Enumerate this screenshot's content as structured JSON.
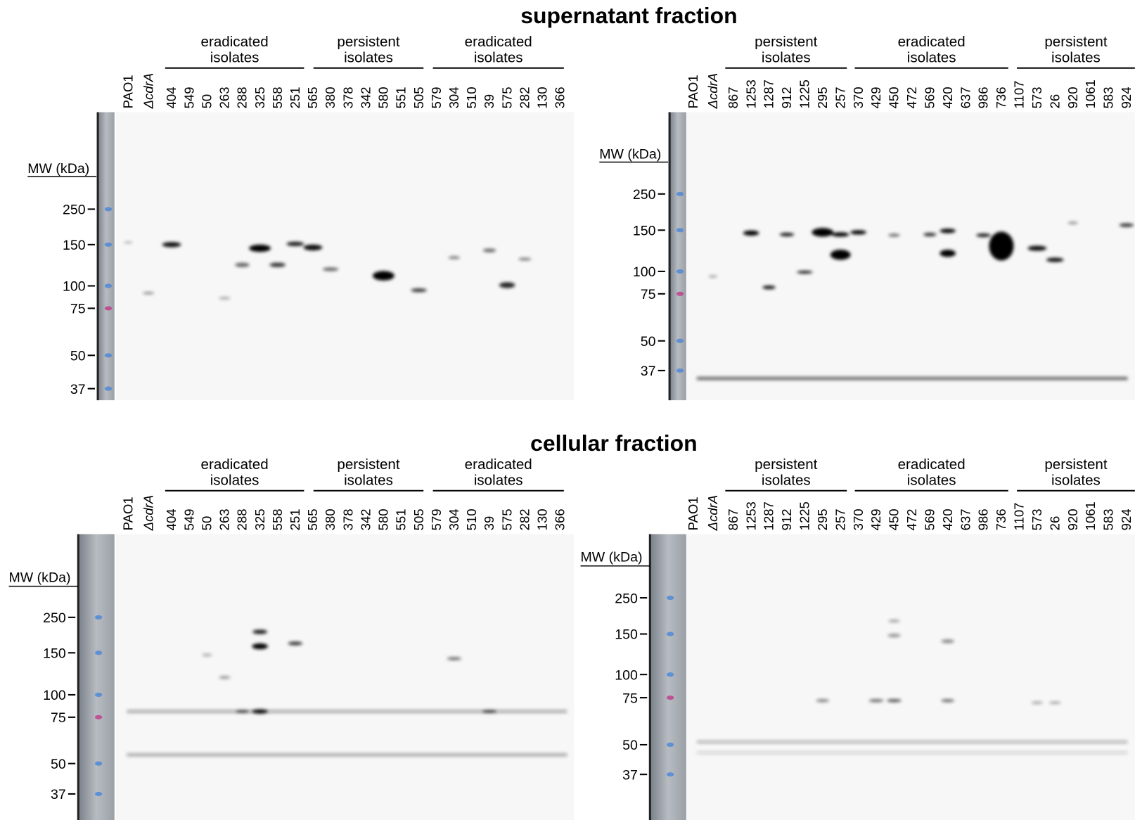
{
  "sections": [
    {
      "title": "supernatant fraction",
      "panels": [
        {
          "mw_label": "MW (kDa)",
          "markers": [
            250,
            150,
            100,
            75,
            50,
            37
          ],
          "controls": [
            "PAO1",
            "ΔcdrA"
          ],
          "groups": [
            {
              "label": [
                "eradicated",
                "isolates"
              ],
              "lanes": [
                "404",
                "549",
                "50",
                "263",
                "288",
                "325",
                "558",
                "251"
              ]
            },
            {
              "label": [
                "persistent",
                "isolates"
              ],
              "lanes": [
                "565",
                "380",
                "378",
                "342",
                "580",
                "551",
                "505"
              ]
            },
            {
              "label": [
                "eradicated",
                "isolates"
              ],
              "lanes": [
                "579",
                "304",
                "510",
                "39",
                "575",
                "282",
                "130",
                "366"
              ]
            }
          ]
        },
        {
          "mw_label": "MW (kDa)",
          "markers": [
            250,
            150,
            100,
            75,
            50,
            37
          ],
          "controls": [
            "PAO1",
            "ΔcdrA"
          ],
          "groups": [
            {
              "label": [
                "persistent",
                "isolates"
              ],
              "lanes": [
                "867",
                "1253",
                "1287",
                "912",
                "1225",
                "295",
                "257"
              ]
            },
            {
              "label": [
                "eradicated",
                "isolates"
              ],
              "lanes": [
                "370",
                "429",
                "450",
                "472",
                "569",
                "420",
                "637",
                "986",
                "736"
              ]
            },
            {
              "label": [
                "persistent",
                "isolates"
              ],
              "lanes": [
                "1107",
                "573",
                "26",
                "920",
                "1061",
                "583",
                "924"
              ]
            }
          ]
        }
      ]
    },
    {
      "title": "cellular fraction",
      "panels": [
        {
          "mw_label": "MW (kDa)",
          "markers": [
            250,
            150,
            100,
            75,
            50,
            37
          ],
          "controls": [
            "PAO1",
            "ΔcdrA"
          ],
          "groups": [
            {
              "label": [
                "eradicated",
                "isolates"
              ],
              "lanes": [
                "404",
                "549",
                "50",
                "263",
                "288",
                "325",
                "558",
                "251"
              ]
            },
            {
              "label": [
                "persistent",
                "isolates"
              ],
              "lanes": [
                "565",
                "380",
                "378",
                "342",
                "580",
                "551",
                "505"
              ]
            },
            {
              "label": [
                "eradicated",
                "isolates"
              ],
              "lanes": [
                "579",
                "304",
                "510",
                "39",
                "575",
                "282",
                "130",
                "366"
              ]
            }
          ]
        },
        {
          "mw_label": "MW (kDa)",
          "markers": [
            250,
            150,
            100,
            75,
            50,
            37
          ],
          "controls": [
            "PAO1",
            "ΔcdrA"
          ],
          "groups": [
            {
              "label": [
                "persistent",
                "isolates"
              ],
              "lanes": [
                "867",
                "1253",
                "1287",
                "912",
                "1225",
                "295",
                "257"
              ]
            },
            {
              "label": [
                "eradicated",
                "isolates"
              ],
              "lanes": [
                "370",
                "429",
                "450",
                "472",
                "569",
                "420",
                "637",
                "986",
                "736"
              ]
            },
            {
              "label": [
                "persistent",
                "isolates"
              ],
              "lanes": [
                "1107",
                "573",
                "26",
                "920",
                "1061",
                "583",
                "924"
              ]
            }
          ]
        }
      ]
    }
  ]
}
